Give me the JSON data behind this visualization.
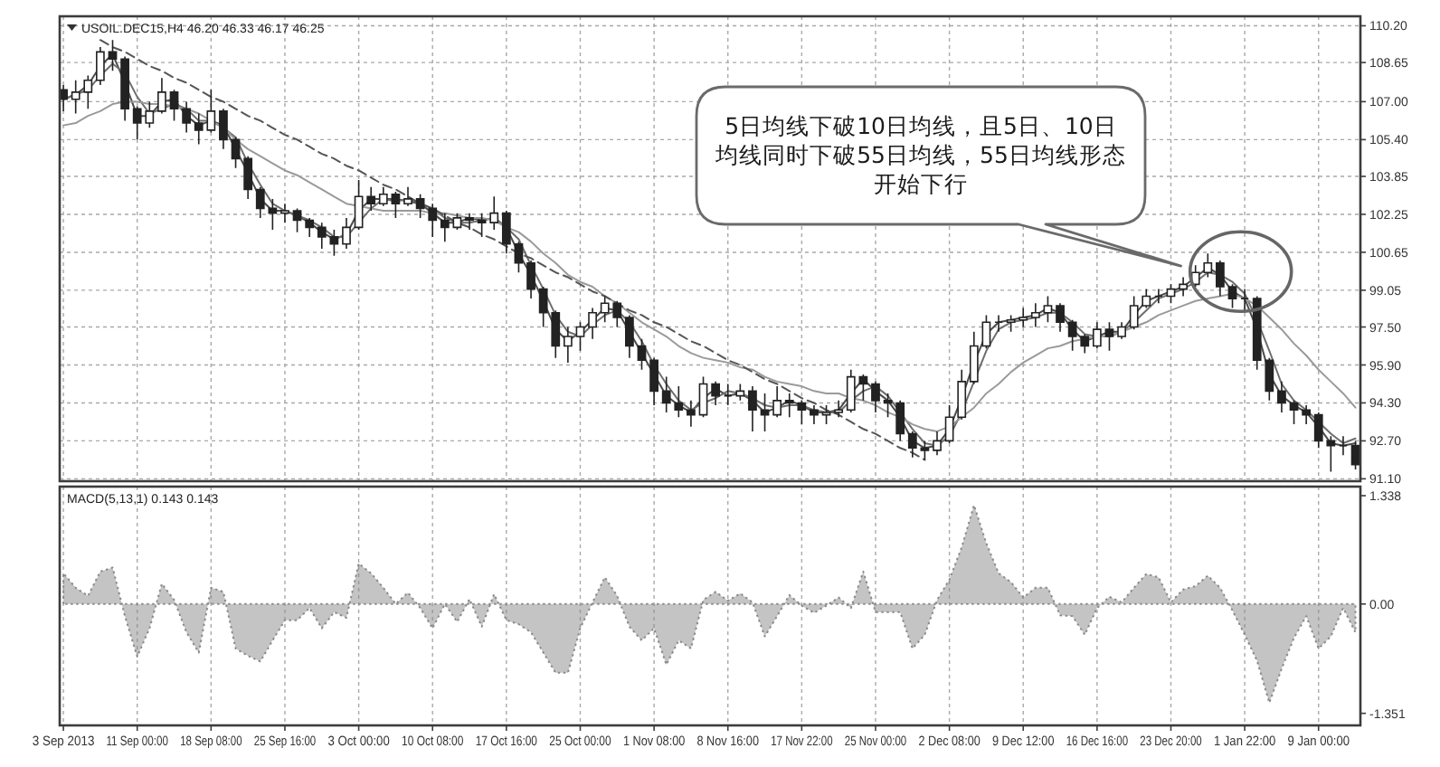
{
  "chart_data": [
    {
      "type": "candlestick",
      "title": "USOIL.DEC15,H4 46.20 46.33 46.17 46.25",
      "categories": [
        null,
        null,
        null,
        null,
        null,
        null,
        null,
        null,
        null,
        null,
        null,
        null,
        null,
        null,
        null,
        null,
        null,
        null,
        null,
        null,
        null,
        null,
        null,
        null,
        null,
        null,
        null,
        null,
        null,
        null,
        null,
        null,
        null,
        null,
        null,
        null,
        null,
        null,
        null,
        null,
        null,
        null,
        null,
        null,
        null,
        null,
        null,
        null,
        null,
        null,
        null,
        null,
        null,
        null,
        null,
        null,
        null,
        null,
        null,
        null,
        null,
        null,
        null,
        null,
        null,
        null,
        null,
        null,
        null,
        null,
        null,
        null,
        null,
        null,
        null,
        null,
        null,
        null,
        null,
        null,
        null,
        null,
        null,
        null,
        null,
        null,
        null,
        null,
        null,
        null,
        null,
        null,
        null,
        null,
        null,
        null,
        null,
        null,
        null,
        null,
        null,
        null,
        null,
        null,
        null,
        null
      ],
      "ohlc": [
        [
          107.5,
          107.7,
          106.6,
          107.1
        ],
        [
          107.1,
          107.9,
          106.5,
          107.4
        ],
        [
          107.4,
          108.1,
          106.7,
          107.9
        ],
        [
          107.9,
          109.3,
          107.7,
          109.1
        ],
        [
          109.1,
          109.6,
          108.3,
          108.8
        ],
        [
          108.8,
          108.9,
          106.2,
          106.7
        ],
        [
          106.7,
          106.8,
          105.4,
          106.1
        ],
        [
          106.1,
          107.0,
          105.9,
          106.6
        ],
        [
          106.6,
          108.0,
          106.5,
          107.4
        ],
        [
          107.4,
          107.5,
          106.2,
          106.7
        ],
        [
          106.7,
          107.0,
          105.7,
          106.1
        ],
        [
          106.1,
          106.5,
          105.2,
          105.8
        ],
        [
          105.8,
          107.5,
          105.7,
          106.6
        ],
        [
          106.6,
          106.7,
          105.0,
          105.4
        ],
        [
          105.4,
          105.5,
          104.2,
          104.6
        ],
        [
          104.6,
          104.7,
          102.9,
          103.3
        ],
        [
          103.3,
          103.4,
          102.1,
          102.5
        ],
        [
          102.5,
          102.9,
          101.6,
          102.3
        ],
        [
          102.3,
          102.7,
          101.9,
          102.4
        ],
        [
          102.4,
          102.5,
          101.5,
          102.0
        ],
        [
          102.0,
          102.1,
          101.3,
          101.7
        ],
        [
          101.7,
          101.9,
          100.8,
          101.3
        ],
        [
          101.3,
          101.6,
          100.5,
          101.0
        ],
        [
          101.0,
          102.1,
          100.8,
          101.7
        ],
        [
          101.7,
          103.7,
          101.6,
          103.0
        ],
        [
          103.0,
          103.4,
          102.4,
          102.7
        ],
        [
          102.7,
          103.4,
          102.6,
          103.1
        ],
        [
          103.1,
          103.2,
          102.1,
          102.7
        ],
        [
          102.7,
          103.4,
          102.6,
          102.9
        ],
        [
          102.9,
          103.1,
          102.1,
          102.5
        ],
        [
          102.5,
          102.7,
          101.3,
          102.0
        ],
        [
          102.0,
          102.3,
          101.1,
          101.7
        ],
        [
          101.7,
          102.3,
          101.6,
          102.1
        ],
        [
          102.1,
          102.3,
          101.6,
          102.0
        ],
        [
          102.0,
          102.3,
          101.3,
          101.9
        ],
        [
          101.9,
          103.0,
          101.6,
          102.3
        ],
        [
          102.3,
          102.4,
          100.6,
          101.0
        ],
        [
          101.0,
          101.1,
          99.8,
          100.2
        ],
        [
          100.2,
          100.3,
          98.7,
          99.1
        ],
        [
          99.1,
          99.2,
          97.5,
          98.1
        ],
        [
          98.1,
          98.2,
          96.2,
          96.7
        ],
        [
          96.7,
          97.5,
          96.0,
          97.1
        ],
        [
          97.1,
          97.7,
          96.5,
          97.5
        ],
        [
          97.5,
          98.3,
          97.0,
          98.1
        ],
        [
          98.1,
          98.8,
          97.7,
          98.5
        ],
        [
          98.5,
          98.6,
          97.5,
          97.9
        ],
        [
          97.9,
          98.0,
          96.2,
          96.7
        ],
        [
          96.7,
          97.0,
          95.7,
          96.1
        ],
        [
          96.1,
          96.2,
          94.2,
          94.8
        ],
        [
          94.8,
          95.4,
          93.9,
          94.3
        ],
        [
          94.3,
          95.0,
          93.7,
          94.0
        ],
        [
          94.0,
          94.4,
          93.3,
          93.8
        ],
        [
          93.8,
          95.4,
          93.7,
          95.1
        ],
        [
          95.1,
          95.2,
          94.2,
          94.6
        ],
        [
          94.6,
          95.1,
          94.2,
          94.6
        ],
        [
          94.6,
          95.1,
          94.4,
          94.8
        ],
        [
          94.8,
          95.0,
          93.1,
          94.0
        ],
        [
          94.0,
          94.7,
          93.1,
          93.8
        ],
        [
          93.8,
          95.0,
          93.7,
          94.4
        ],
        [
          94.4,
          94.7,
          93.7,
          94.3
        ],
        [
          94.3,
          94.4,
          93.4,
          94.0
        ],
        [
          94.0,
          94.2,
          93.4,
          93.8
        ],
        [
          93.8,
          94.2,
          93.4,
          93.9
        ],
        [
          93.9,
          94.4,
          93.7,
          94.0
        ],
        [
          94.0,
          95.7,
          93.9,
          95.4
        ],
        [
          95.4,
          95.5,
          94.4,
          95.1
        ],
        [
          95.1,
          95.2,
          93.9,
          94.4
        ],
        [
          94.4,
          94.7,
          93.7,
          94.3
        ],
        [
          94.3,
          94.4,
          92.7,
          93.0
        ],
        [
          93.0,
          93.1,
          92.0,
          92.4
        ],
        [
          92.4,
          92.7,
          91.9,
          92.3
        ],
        [
          92.3,
          93.1,
          92.1,
          92.7
        ],
        [
          92.7,
          94.2,
          92.6,
          93.7
        ],
        [
          93.7,
          95.7,
          93.6,
          95.2
        ],
        [
          95.2,
          97.3,
          95.1,
          96.7
        ],
        [
          96.7,
          98.0,
          96.6,
          97.7
        ],
        [
          97.7,
          98.0,
          97.3,
          97.7
        ],
        [
          97.7,
          98.0,
          97.3,
          97.8
        ],
        [
          97.8,
          98.3,
          97.5,
          97.9
        ],
        [
          97.9,
          98.5,
          97.5,
          98.1
        ],
        [
          98.1,
          98.8,
          97.7,
          98.4
        ],
        [
          98.4,
          98.5,
          97.3,
          97.7
        ],
        [
          97.7,
          97.8,
          96.5,
          97.1
        ],
        [
          97.1,
          97.2,
          96.4,
          96.7
        ],
        [
          96.7,
          97.7,
          96.6,
          97.4
        ],
        [
          97.4,
          97.7,
          96.5,
          97.1
        ],
        [
          97.1,
          97.7,
          97.0,
          97.5
        ],
        [
          97.5,
          98.8,
          97.4,
          98.4
        ],
        [
          98.4,
          99.1,
          98.3,
          98.8
        ],
        [
          98.8,
          99.1,
          98.5,
          98.8
        ],
        [
          98.8,
          99.3,
          98.5,
          99.1
        ],
        [
          99.1,
          99.6,
          98.8,
          99.3
        ],
        [
          99.3,
          100.1,
          99.2,
          99.8
        ],
        [
          99.8,
          100.6,
          99.6,
          100.2
        ],
        [
          100.2,
          100.3,
          98.8,
          99.2
        ],
        [
          99.2,
          99.3,
          98.3,
          98.7
        ],
        [
          98.7,
          99.1,
          98.1,
          98.7
        ],
        [
          98.7,
          98.8,
          95.7,
          96.1
        ],
        [
          96.1,
          96.2,
          94.4,
          94.8
        ],
        [
          94.8,
          95.2,
          93.9,
          94.3
        ],
        [
          94.3,
          94.4,
          93.4,
          94.0
        ],
        [
          94.0,
          94.2,
          93.4,
          93.8
        ],
        [
          93.8,
          93.9,
          92.4,
          92.7
        ],
        [
          92.7,
          92.9,
          91.4,
          92.5
        ],
        [
          92.5,
          92.9,
          92.1,
          92.5
        ],
        [
          92.5,
          92.7,
          91.5,
          91.7
        ]
      ],
      "color": "#222222",
      "series": [
        {
          "type": "line",
          "color": "#4a4a4a",
          "values": [
            107.1,
            107.3,
            107.7,
            108.5,
            109.0,
            107.8,
            106.4,
            106.4,
            107.0,
            107.1,
            106.4,
            106.0,
            106.2,
            106.0,
            105.0,
            104.0,
            102.9,
            102.4,
            102.4,
            102.2,
            101.9,
            101.5,
            101.2,
            101.4,
            102.4,
            102.9,
            102.9,
            102.9,
            102.8,
            102.7,
            102.3,
            101.9,
            101.9,
            102.1,
            102.0,
            102.1,
            101.7,
            100.6,
            99.7,
            98.6,
            97.4,
            96.9,
            97.3,
            97.8,
            98.3,
            98.2,
            97.3,
            96.4,
            95.5,
            94.6,
            94.2,
            93.9,
            94.5,
            94.9,
            94.6,
            94.7,
            94.4,
            93.9,
            94.1,
            94.4,
            94.2,
            93.9,
            93.9,
            94.0,
            94.7,
            95.3,
            94.8,
            94.4,
            93.7,
            92.7,
            92.4,
            92.5,
            93.2,
            94.5,
            96.0,
            97.2,
            97.7,
            97.8,
            97.9,
            98.0,
            98.3,
            98.1,
            97.4,
            96.9,
            97.1,
            97.3,
            97.3,
            98.0,
            98.6,
            98.8,
            99.0,
            99.2,
            99.6,
            100.0,
            99.7,
            99.0,
            98.7,
            97.4,
            95.5,
            94.6,
            94.2,
            93.9,
            93.3,
            92.6,
            92.5,
            92.6
          ]
        },
        {
          "type": "line",
          "color": "#6e6e6e",
          "values": [
            107.1,
            107.3,
            107.5,
            108.1,
            108.6,
            108.2,
            107.2,
            106.5,
            106.7,
            106.9,
            106.7,
            106.2,
            106.2,
            105.9,
            105.5,
            104.4,
            103.5,
            102.7,
            102.4,
            102.2,
            102.0,
            101.7,
            101.3,
            101.3,
            101.9,
            102.5,
            102.9,
            102.8,
            102.9,
            102.7,
            102.5,
            102.1,
            101.9,
            101.9,
            102.0,
            102.1,
            101.7,
            101.2,
            100.1,
            99.1,
            98.0,
            97.3,
            97.1,
            97.6,
            98.0,
            98.2,
            97.7,
            96.9,
            95.9,
            95.1,
            94.4,
            94.0,
            94.3,
            94.5,
            94.8,
            94.7,
            94.5,
            94.2,
            94.1,
            94.2,
            94.2,
            94.0,
            93.9,
            93.9,
            94.4,
            94.8,
            95.0,
            94.6,
            93.9,
            93.2,
            92.6,
            92.5,
            92.9,
            93.9,
            95.2,
            96.5,
            97.4,
            97.7,
            97.8,
            97.9,
            98.1,
            98.1,
            97.7,
            97.2,
            97.1,
            97.1,
            97.3,
            97.7,
            98.2,
            98.7,
            98.9,
            99.1,
            99.4,
            99.8,
            99.7,
            99.4,
            98.9,
            97.8,
            96.5,
            95.1,
            94.4,
            94.0,
            93.5,
            93.0,
            92.6,
            92.8
          ]
        },
        {
          "type": "line",
          "color": "#9a9a9a",
          "values": [
            106.0,
            106.1,
            106.4,
            106.6,
            106.9,
            107.0,
            107.0,
            106.9,
            106.9,
            106.8,
            106.7,
            106.5,
            106.2,
            105.9,
            105.4,
            105.0,
            104.7,
            104.4,
            104.1,
            103.9,
            103.6,
            103.3,
            103.0,
            102.7,
            102.6,
            102.5,
            102.4,
            102.4,
            102.4,
            102.4,
            102.3,
            102.3,
            102.2,
            102.1,
            102.1,
            102.0,
            101.7,
            101.5,
            101.1,
            100.6,
            100.2,
            99.7,
            99.4,
            99.2,
            98.8,
            98.5,
            98.1,
            97.7,
            97.4,
            97.1,
            96.7,
            96.4,
            96.2,
            96.1,
            96.0,
            95.8,
            95.7,
            95.4,
            95.2,
            95.1,
            95.0,
            94.8,
            94.7,
            94.7,
            94.5,
            94.4,
            94.2,
            93.9,
            93.7,
            93.4,
            93.2,
            93.1,
            93.3,
            93.7,
            94.1,
            94.7,
            95.1,
            95.6,
            96.0,
            96.3,
            96.6,
            96.7,
            96.9,
            97.0,
            97.1,
            97.1,
            97.3,
            97.5,
            97.7,
            98.0,
            98.2,
            98.4,
            98.6,
            98.7,
            98.8,
            98.9,
            98.7,
            98.4,
            97.9,
            97.4,
            96.8,
            96.3,
            95.7,
            95.2,
            94.7,
            94.1
          ]
        },
        {
          "type": "line",
          "color": "#555555",
          "line_style": "dashed",
          "values": [
            null,
            null,
            null,
            109.6,
            109.3,
            109.1,
            108.8,
            108.5,
            108.3,
            108.0,
            107.8,
            107.5,
            107.2,
            107.0,
            106.7,
            106.4,
            106.2,
            105.9,
            105.6,
            105.4,
            105.1,
            104.8,
            104.6,
            104.3,
            104.1,
            103.8,
            103.5,
            103.3,
            103.0,
            102.7,
            102.5,
            102.2,
            101.9,
            101.7,
            101.4,
            101.2,
            100.9,
            100.6,
            100.4,
            100.1,
            99.8,
            99.6,
            99.3,
            99.0,
            98.8,
            98.5,
            98.2,
            98.0,
            97.7,
            97.5,
            97.2,
            96.9,
            96.7,
            96.4,
            96.1,
            95.9,
            95.6,
            95.3,
            95.1,
            94.8,
            94.5,
            94.3,
            94.0,
            93.8,
            93.5,
            93.2,
            93.0,
            92.7,
            92.4,
            92.2,
            91.9,
            null,
            null,
            null,
            null,
            null,
            null,
            null,
            null,
            null,
            null,
            null,
            null,
            null,
            null,
            null,
            null,
            null,
            null,
            null,
            null,
            null,
            null,
            null,
            null,
            null,
            null,
            null,
            null,
            null,
            null,
            null,
            null,
            null,
            null,
            null
          ]
        }
      ],
      "ylim": [
        91.0,
        110.6
      ],
      "yticks": [
        {
          "value": 110.2,
          "label": "110.20"
        },
        108.65,
        {
          "value": 107,
          "label": "107.00"
        },
        {
          "value": 105.4,
          "label": "105.40"
        },
        103.85,
        102.25,
        100.65,
        99.05,
        {
          "value": 97.5,
          "label": "97.50"
        },
        {
          "value": 95.9,
          "label": "95.90"
        },
        {
          "value": 94.3,
          "label": "94.30"
        },
        {
          "value": 92.7,
          "label": "92.70"
        },
        {
          "value": 91.1,
          "label": "91.10"
        }
      ],
      "grid": true,
      "annotations": [
        "5日均线下破10日均线，且5日、10日均线同时下破55日均线，55日均线形态开始下行"
      ]
    },
    {
      "type": "area",
      "title": "MACD(5,13,1) 0.143 0.143",
      "categories": [
        "3 Sep 2013",
        null,
        null,
        null,
        null,
        null,
        "11 Sep 00:00",
        null,
        null,
        null,
        null,
        null,
        "18 Sep 08:00",
        null,
        null,
        null,
        null,
        null,
        "25 Sep 16:00",
        null,
        null,
        null,
        null,
        null,
        "3 Oct 00:00",
        null,
        null,
        null,
        null,
        null,
        "10 Oct 08:00",
        null,
        null,
        null,
        null,
        null,
        "17 Oct 16:00",
        null,
        null,
        null,
        null,
        null,
        "25 Oct 00:00",
        null,
        null,
        null,
        null,
        null,
        "1 Nov 08:00",
        null,
        null,
        null,
        null,
        null,
        "8 Nov 16:00",
        null,
        null,
        null,
        null,
        null,
        "17 Nov 22:00",
        null,
        null,
        null,
        null,
        null,
        "25 Nov 00:00",
        null,
        null,
        null,
        null,
        null,
        "2 Dec 08:00",
        null,
        null,
        null,
        null,
        null,
        "9 Dec 12:00",
        null,
        null,
        null,
        null,
        null,
        "16 Dec 16:00",
        null,
        null,
        null,
        null,
        null,
        "23 Dec 20:00",
        null,
        null,
        null,
        null,
        null,
        "1 Jan 22:00",
        null,
        null,
        null,
        null,
        null,
        "9 Jan 00:00",
        null,
        null,
        null
      ],
      "values": [
        0.38,
        0.2,
        0.1,
        0.4,
        0.45,
        -0.15,
        -0.65,
        -0.3,
        0.25,
        0.05,
        -0.35,
        -0.6,
        0.2,
        0.15,
        -0.55,
        -0.64,
        -0.71,
        -0.45,
        -0.2,
        -0.2,
        -0.05,
        -0.3,
        -0.1,
        -0.17,
        0.5,
        0.38,
        0.2,
        0.0,
        0.14,
        -0.05,
        -0.3,
        0.0,
        -0.22,
        0.06,
        -0.28,
        0.12,
        -0.2,
        -0.25,
        -0.35,
        -0.6,
        -0.85,
        -0.85,
        -0.3,
        0.02,
        0.33,
        0.1,
        -0.28,
        -0.45,
        -0.3,
        -0.75,
        -0.45,
        -0.55,
        0.05,
        0.15,
        0.04,
        0.13,
        0.02,
        -0.4,
        -0.15,
        0.11,
        -0.02,
        -0.11,
        -0.02,
        0.08,
        -0.05,
        0.4,
        -0.1,
        -0.1,
        -0.1,
        -0.55,
        -0.38,
        0.05,
        0.3,
        0.7,
        1.22,
        0.75,
        0.38,
        0.27,
        0.08,
        0.2,
        0.2,
        -0.14,
        -0.15,
        -0.38,
        -0.05,
        0.09,
        0.02,
        0.2,
        0.37,
        0.33,
        0.02,
        0.18,
        0.22,
        0.35,
        0.2,
        -0.08,
        -0.38,
        -0.7,
        -1.22,
        -0.8,
        -0.42,
        -0.15,
        -0.55,
        -0.4,
        -0.05,
        -0.35
      ],
      "color": "#8a8a8a",
      "line_style": "dotted",
      "ylim": [
        -1.5,
        1.45
      ],
      "yticks": [
        1.338,
        {
          "value": 0,
          "label": "0.00"
        },
        {
          "value": -1.351,
          "label": "-1.351"
        }
      ],
      "grid": "x"
    }
  ]
}
